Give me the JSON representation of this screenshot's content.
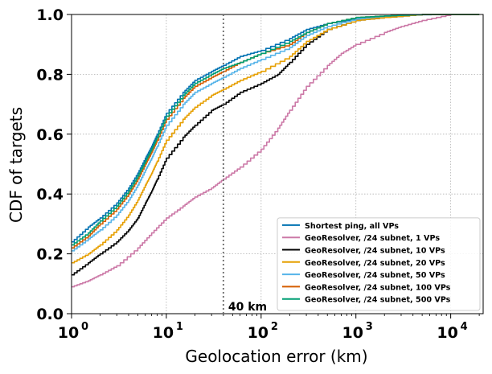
{
  "chart_data": {
    "type": "line",
    "title": "",
    "xlabel": "Geolocation error (km)",
    "ylabel": "CDF of targets",
    "x_scale": "log",
    "xlim": [
      1,
      22000
    ],
    "ylim": [
      0,
      1
    ],
    "x_ticks": [
      {
        "value": 1,
        "base": "10",
        "exp": "0"
      },
      {
        "value": 10,
        "base": "10",
        "exp": "1"
      },
      {
        "value": 100,
        "base": "10",
        "exp": "2"
      },
      {
        "value": 1000,
        "base": "10",
        "exp": "3"
      },
      {
        "value": 10000,
        "base": "10",
        "exp": "4"
      }
    ],
    "y_ticks": [
      {
        "value": 0,
        "label": "0.0"
      },
      {
        "value": 0.2,
        "label": "0.2"
      },
      {
        "value": 0.4,
        "label": "0.4"
      },
      {
        "value": 0.6,
        "label": "0.6"
      },
      {
        "value": 0.8,
        "label": "0.8"
      },
      {
        "value": 1.0,
        "label": "1.0"
      }
    ],
    "grid": true,
    "legend_position": "bottom-right",
    "annotations": [
      {
        "type": "vline",
        "x": 40,
        "label": "40 km",
        "style": "dotted",
        "color": "#777777"
      }
    ],
    "series": [
      {
        "name": "Shortest ping, all VPs",
        "color": "#0072B2",
        "x": [
          1,
          1.5,
          2,
          3,
          4,
          5,
          6,
          7,
          8,
          10,
          15,
          20,
          30,
          40,
          60,
          100,
          200,
          300,
          500,
          1000,
          2000,
          5000,
          10000,
          20000
        ],
        "y": [
          0.24,
          0.29,
          0.32,
          0.37,
          0.42,
          0.47,
          0.52,
          0.56,
          0.6,
          0.67,
          0.74,
          0.78,
          0.81,
          0.83,
          0.86,
          0.88,
          0.92,
          0.95,
          0.97,
          0.985,
          0.995,
          0.999,
          1.0,
          1.0
        ]
      },
      {
        "name": "GeoResolver, /24 subnet, 1 VPs",
        "color": "#CC79A7",
        "x": [
          1,
          1.5,
          2,
          3,
          5,
          7,
          10,
          15,
          20,
          30,
          40,
          60,
          100,
          150,
          200,
          300,
          500,
          700,
          1000,
          2000,
          3000,
          5000,
          10000,
          20000
        ],
        "y": [
          0.09,
          0.11,
          0.13,
          0.16,
          0.22,
          0.27,
          0.32,
          0.36,
          0.39,
          0.42,
          0.45,
          0.49,
          0.55,
          0.62,
          0.68,
          0.76,
          0.83,
          0.87,
          0.9,
          0.94,
          0.96,
          0.98,
          1.0,
          1.0
        ]
      },
      {
        "name": "GeoResolver, /24 subnet, 10 VPs",
        "color": "#000000",
        "x": [
          1,
          1.5,
          2,
          3,
          4,
          5,
          6,
          7,
          8,
          10,
          15,
          20,
          30,
          40,
          60,
          100,
          150,
          200,
          300,
          500,
          1000,
          2000,
          5000,
          10000,
          20000
        ],
        "y": [
          0.13,
          0.17,
          0.2,
          0.24,
          0.28,
          0.32,
          0.37,
          0.41,
          0.45,
          0.52,
          0.59,
          0.63,
          0.68,
          0.7,
          0.74,
          0.77,
          0.8,
          0.84,
          0.9,
          0.95,
          0.98,
          0.99,
          1.0,
          1.0,
          1.0
        ]
      },
      {
        "name": "GeoResolver, /24 subnet, 20 VPs",
        "color": "#E69F00",
        "x": [
          1,
          1.5,
          2,
          3,
          4,
          5,
          6,
          7,
          8,
          10,
          15,
          20,
          30,
          40,
          60,
          100,
          200,
          300,
          500,
          1000,
          2000,
          5000,
          10000,
          20000
        ],
        "y": [
          0.17,
          0.2,
          0.23,
          0.28,
          0.33,
          0.38,
          0.43,
          0.47,
          0.51,
          0.58,
          0.65,
          0.69,
          0.73,
          0.75,
          0.78,
          0.81,
          0.86,
          0.91,
          0.95,
          0.98,
          0.99,
          1.0,
          1.0,
          1.0
        ]
      },
      {
        "name": "GeoResolver, /24 subnet, 50 VPs",
        "color": "#56B4E9",
        "x": [
          1,
          1.5,
          2,
          3,
          4,
          5,
          6,
          7,
          8,
          10,
          15,
          20,
          30,
          40,
          60,
          100,
          200,
          300,
          500,
          1000,
          2000,
          5000,
          10000,
          20000
        ],
        "y": [
          0.21,
          0.25,
          0.28,
          0.33,
          0.38,
          0.43,
          0.48,
          0.52,
          0.56,
          0.63,
          0.7,
          0.74,
          0.77,
          0.79,
          0.82,
          0.85,
          0.89,
          0.93,
          0.96,
          0.985,
          0.995,
          1.0,
          1.0,
          1.0
        ]
      },
      {
        "name": "GeoResolver, /24 subnet, 100 VPs",
        "color": "#D55E00",
        "x": [
          1,
          1.5,
          2,
          3,
          4,
          5,
          6,
          7,
          8,
          10,
          15,
          20,
          30,
          40,
          60,
          100,
          200,
          300,
          500,
          1000,
          2000,
          5000,
          10000,
          20000
        ],
        "y": [
          0.22,
          0.26,
          0.3,
          0.35,
          0.4,
          0.45,
          0.5,
          0.54,
          0.58,
          0.65,
          0.72,
          0.76,
          0.79,
          0.81,
          0.84,
          0.87,
          0.9,
          0.94,
          0.97,
          0.99,
          0.995,
          1.0,
          1.0,
          1.0
        ]
      },
      {
        "name": "GeoResolver, /24 subnet, 500 VPs",
        "color": "#009E73",
        "x": [
          1,
          1.5,
          2,
          3,
          4,
          5,
          6,
          7,
          8,
          10,
          15,
          20,
          30,
          40,
          60,
          100,
          200,
          300,
          500,
          1000,
          2000,
          5000,
          10000,
          20000
        ],
        "y": [
          0.23,
          0.27,
          0.31,
          0.36,
          0.41,
          0.46,
          0.51,
          0.55,
          0.59,
          0.66,
          0.73,
          0.77,
          0.8,
          0.82,
          0.84,
          0.87,
          0.91,
          0.94,
          0.97,
          0.99,
          0.995,
          1.0,
          1.0,
          1.0
        ]
      }
    ]
  }
}
